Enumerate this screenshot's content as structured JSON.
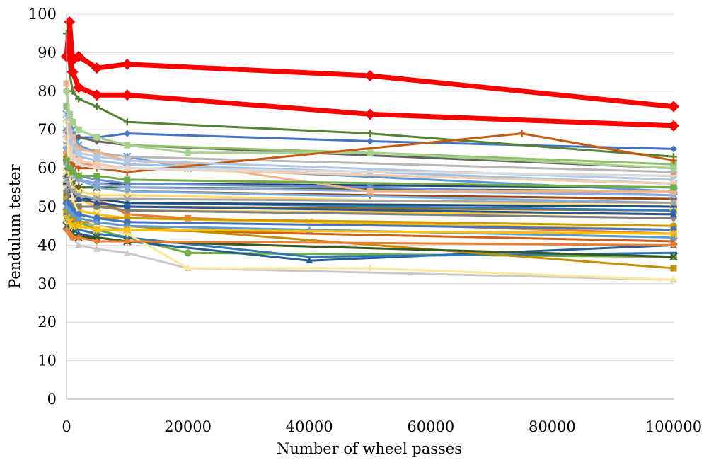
{
  "chart_data": {
    "type": "line",
    "title": "",
    "xlabel": "Number of wheel passes",
    "ylabel": "Pendulum tester",
    "xlim": [
      0,
      100000
    ],
    "ylim": [
      0,
      100
    ],
    "x_ticks": [
      0,
      20000,
      40000,
      60000,
      80000,
      100000
    ],
    "x_tick_labels": [
      "0",
      "20000",
      "40000",
      "60000",
      "80000",
      "100000"
    ],
    "y_ticks": [
      0,
      10,
      20,
      30,
      40,
      50,
      60,
      70,
      80,
      90,
      100
    ],
    "y_tick_labels": [
      "0",
      "10",
      "20",
      "30",
      "40",
      "50",
      "60",
      "70",
      "80",
      "90",
      "100"
    ],
    "grid": "horizontal",
    "legend": "none",
    "series": [
      {
        "color": "#4472C4",
        "marker": "diamond",
        "x": [
          0,
          500,
          1000,
          2000,
          5000,
          10000,
          50000,
          100000
        ],
        "y": [
          68,
          70,
          69,
          68,
          68,
          69,
          67,
          65
        ]
      },
      {
        "color": "#ED7D31",
        "marker": "square",
        "x": [
          0,
          500,
          1000,
          2000,
          5000,
          10000,
          20000,
          100000
        ],
        "y": [
          58,
          55,
          53,
          53,
          52,
          48,
          47,
          43
        ]
      },
      {
        "color": "#A5A5A5",
        "marker": "triangle",
        "x": [
          0,
          500,
          1000,
          2000,
          5000,
          10000,
          100000
        ],
        "y": [
          56,
          50,
          48,
          46,
          45,
          44,
          43
        ]
      },
      {
        "color": "#FFC000",
        "marker": "cross",
        "x": [
          0,
          500,
          1000,
          2000,
          5000,
          10000,
          40000,
          100000
        ],
        "y": [
          55,
          52,
          50,
          49,
          48,
          47,
          46,
          44
        ]
      },
      {
        "color": "#5B9BD5",
        "marker": "star",
        "x": [
          0,
          500,
          1000,
          2000,
          5000,
          10000,
          20000,
          100000
        ],
        "y": [
          74,
          72,
          70,
          66,
          64,
          63,
          60,
          54
        ]
      },
      {
        "color": "#70AD47",
        "marker": "circle",
        "x": [
          0,
          500,
          1000,
          2000,
          5000,
          10000,
          20000,
          100000
        ],
        "y": [
          58,
          55,
          50,
          46,
          44,
          42,
          38,
          37
        ]
      },
      {
        "color": "#264478",
        "marker": "dash",
        "x": [
          0,
          500,
          1000,
          2000,
          5000,
          10000,
          100000
        ],
        "y": [
          62,
          60,
          58,
          57,
          56,
          56,
          55
        ]
      },
      {
        "color": "#9E480E",
        "marker": "plus",
        "x": [
          0,
          500,
          1000,
          2000,
          5000,
          10000,
          50000,
          100000
        ],
        "y": [
          60,
          58,
          56,
          55,
          55,
          54,
          53,
          52
        ]
      },
      {
        "color": "#636363",
        "marker": "diamond",
        "x": [
          0,
          500,
          1000,
          2000,
          5000,
          10000,
          100000
        ],
        "y": [
          70,
          69,
          68,
          68,
          67,
          66,
          60
        ]
      },
      {
        "color": "#997300",
        "marker": "square",
        "x": [
          0,
          500,
          1000,
          2000,
          5000,
          10000,
          100000
        ],
        "y": [
          53,
          52,
          51,
          50,
          50,
          50,
          49
        ]
      },
      {
        "color": "#255E91",
        "marker": "triangle",
        "x": [
          0,
          500,
          1000,
          2000,
          5000,
          10000,
          40000,
          100000
        ],
        "y": [
          47,
          45,
          44,
          43,
          42,
          41,
          36,
          40
        ]
      },
      {
        "color": "#43682B",
        "marker": "cross",
        "x": [
          0,
          500,
          1000,
          2000,
          5000,
          10000,
          100000
        ],
        "y": [
          57,
          56,
          56,
          55,
          55,
          55,
          54
        ]
      },
      {
        "color": "#698ED0",
        "marker": "star",
        "x": [
          0,
          500,
          1000,
          2000,
          5000,
          10000,
          50000,
          100000
        ],
        "y": [
          66,
          63,
          60,
          58,
          57,
          56,
          55,
          53
        ]
      },
      {
        "color": "#F1975A",
        "marker": "circle",
        "x": [
          0,
          500,
          1000,
          2000,
          5000,
          10000,
          100000
        ],
        "y": [
          64,
          63,
          62,
          61,
          61,
          60,
          58
        ]
      },
      {
        "color": "#B7B7B7",
        "marker": "dash",
        "x": [
          0,
          500,
          1000,
          2000,
          5000,
          10000,
          100000
        ],
        "y": [
          72,
          68,
          66,
          65,
          64,
          63,
          59
        ]
      },
      {
        "color": "#FFCD33",
        "marker": "plus",
        "x": [
          0,
          500,
          1000,
          2000,
          5000,
          10000,
          100000
        ],
        "y": [
          60,
          56,
          53,
          52,
          50,
          49,
          48
        ]
      },
      {
        "color": "#7CAFDD",
        "marker": "diamond",
        "x": [
          0,
          500,
          1000,
          2000,
          5000,
          10000,
          100000
        ],
        "y": [
          65,
          62,
          59,
          57,
          55,
          54,
          51
        ]
      },
      {
        "color": "#8CC168",
        "marker": "square",
        "x": [
          0,
          500,
          1000,
          2000,
          5000,
          10000,
          50000,
          100000
        ],
        "y": [
          76,
          74,
          72,
          70,
          68,
          66,
          64,
          61
        ]
      },
      {
        "color": "#327DC2",
        "marker": "triangle",
        "x": [
          0,
          500,
          1000,
          2000,
          5000,
          10000,
          100000
        ],
        "y": [
          60,
          57,
          55,
          53,
          52,
          51,
          49
        ]
      },
      {
        "color": "#D26012",
        "marker": "cross",
        "x": [
          0,
          500,
          1000,
          2000,
          5000,
          10000,
          100000
        ],
        "y": [
          50,
          48,
          46,
          45,
          44,
          44,
          41
        ]
      },
      {
        "color": "#848484",
        "marker": "star",
        "x": [
          0,
          500,
          1000,
          2000,
          5000,
          10000,
          100000
        ],
        "y": [
          69,
          66,
          64,
          62,
          61,
          60,
          56
        ]
      },
      {
        "color": "#CC9A00",
        "marker": "circle",
        "x": [
          0,
          500,
          1000,
          2000,
          5000,
          10000,
          100000
        ],
        "y": [
          52,
          50,
          49,
          48,
          47,
          47,
          45
        ]
      },
      {
        "color": "#2E75B6",
        "marker": "dash",
        "x": [
          0,
          500,
          1000,
          2000,
          5000,
          10000,
          40000,
          100000
        ],
        "y": [
          48,
          46,
          45,
          44,
          43,
          42,
          37,
          38
        ]
      },
      {
        "color": "#548235",
        "marker": "plus",
        "x": [
          0,
          500,
          1000,
          2000,
          5000,
          10000,
          50000,
          100000
        ],
        "y": [
          95,
          85,
          80,
          78,
          76,
          72,
          69,
          63
        ]
      },
      {
        "color": "#8FAADC",
        "marker": "diamond",
        "x": [
          0,
          500,
          1000,
          2000,
          5000,
          10000,
          100000
        ],
        "y": [
          61,
          59,
          58,
          57,
          56,
          55,
          53
        ]
      },
      {
        "color": "#F4B183",
        "marker": "square",
        "x": [
          0,
          500,
          1000,
          2000,
          5000,
          10000,
          20000,
          50000,
          100000
        ],
        "y": [
          82,
          72,
          68,
          65,
          64,
          62,
          61,
          54,
          54
        ]
      },
      {
        "color": "#C9C9C9",
        "marker": "triangle",
        "x": [
          0,
          500,
          1000,
          2000,
          5000,
          10000,
          20000,
          100000
        ],
        "y": [
          55,
          46,
          42,
          40,
          39,
          38,
          34,
          31
        ]
      },
      {
        "color": "#FFD966",
        "marker": "cross",
        "x": [
          0,
          500,
          1000,
          2000,
          5000,
          10000,
          100000
        ],
        "y": [
          59,
          56,
          55,
          54,
          53,
          53,
          50
        ]
      },
      {
        "color": "#9DC3E6",
        "marker": "star",
        "x": [
          0,
          500,
          1000,
          2000,
          5000,
          10000,
          50000,
          100000
        ],
        "y": [
          70,
          67,
          65,
          63,
          62,
          61,
          59,
          56
        ]
      },
      {
        "color": "#A9D18E",
        "marker": "circle",
        "x": [
          0,
          500,
          1000,
          2000,
          5000,
          10000,
          20000,
          50000,
          100000
        ],
        "y": [
          80,
          74,
          72,
          70,
          68,
          66,
          64,
          64,
          60
        ]
      },
      {
        "color": "#1F4E79",
        "marker": "dash",
        "x": [
          0,
          500,
          1000,
          2000,
          5000,
          10000,
          100000
        ],
        "y": [
          56,
          54,
          53,
          52,
          52,
          51,
          50
        ]
      },
      {
        "color": "#C55A11",
        "marker": "plus",
        "x": [
          0,
          500,
          1000,
          2000,
          5000,
          10000,
          75000,
          100000
        ],
        "y": [
          63,
          62,
          61,
          60,
          60,
          59,
          69,
          62
        ]
      },
      {
        "color": "#7F7F7F",
        "marker": "diamond",
        "x": [
          0,
          500,
          1000,
          2000,
          5000,
          10000,
          100000
        ],
        "y": [
          54,
          52,
          51,
          50,
          50,
          49,
          47
        ]
      },
      {
        "color": "#BF9000",
        "marker": "square",
        "x": [
          0,
          500,
          1000,
          2000,
          5000,
          10000,
          100000
        ],
        "y": [
          49,
          48,
          47,
          46,
          46,
          45,
          34
        ]
      },
      {
        "color": "#2F5597",
        "marker": "triangle",
        "x": [
          0,
          500,
          1000,
          2000,
          5000,
          10000,
          100000
        ],
        "y": [
          58,
          55,
          53,
          52,
          51,
          50,
          48
        ]
      },
      {
        "color": "#385723",
        "marker": "cross",
        "x": [
          0,
          500,
          1000,
          2000,
          5000,
          10000,
          100000
        ],
        "y": [
          45,
          44,
          43,
          42,
          42,
          41,
          37
        ]
      },
      {
        "color": "#B4C7E7",
        "marker": "star",
        "x": [
          0,
          500,
          1000,
          2000,
          5000,
          10000,
          100000
        ],
        "y": [
          73,
          69,
          66,
          64,
          63,
          62,
          57
        ]
      },
      {
        "color": "#F8CBAD",
        "marker": "circle",
        "x": [
          0,
          500,
          1000,
          2000,
          5000,
          10000,
          100000
        ],
        "y": [
          68,
          65,
          63,
          62,
          61,
          60,
          56
        ]
      },
      {
        "color": "#DBDBDB",
        "marker": "dash",
        "x": [
          0,
          500,
          1000,
          2000,
          5000,
          10000,
          100000
        ],
        "y": [
          66,
          64,
          62,
          61,
          60,
          60,
          58
        ]
      },
      {
        "color": "#FFE699",
        "marker": "plus",
        "x": [
          0,
          500,
          1000,
          2000,
          5000,
          10000,
          20000,
          50000,
          100000
        ],
        "y": [
          72,
          58,
          52,
          48,
          45,
          43,
          34,
          34,
          31
        ]
      },
      {
        "color": "#4472C4",
        "marker": "circle",
        "x": [
          0,
          500,
          1000,
          2000,
          5000,
          10000,
          100000
        ],
        "y": [
          51,
          50,
          49,
          48,
          47,
          46,
          44
        ]
      },
      {
        "color": "#ED7D31",
        "marker": "diamond",
        "x": [
          0,
          500,
          1000,
          2000,
          5000,
          10000,
          100000
        ],
        "y": [
          44,
          43,
          42,
          42,
          41,
          41,
          40
        ]
      },
      {
        "color": "#70AD47",
        "marker": "square",
        "x": [
          0,
          500,
          1000,
          2000,
          5000,
          10000,
          100000
        ],
        "y": [
          62,
          60,
          59,
          58,
          58,
          57,
          55
        ]
      },
      {
        "color": "#5B9BD5",
        "marker": "triangle",
        "x": [
          0,
          500,
          1000,
          2000,
          5000,
          10000,
          40000,
          100000
        ],
        "y": [
          50,
          49,
          48,
          47,
          46,
          45,
          44,
          42
        ]
      },
      {
        "color": "#A5A5A5",
        "marker": "cross",
        "x": [
          0,
          500,
          1000,
          2000,
          5000,
          10000,
          100000
        ],
        "y": [
          57,
          55,
          54,
          53,
          52,
          52,
          51
        ]
      },
      {
        "color": "#FFC000",
        "marker": "star",
        "x": [
          0,
          500,
          1000,
          2000,
          5000,
          10000,
          100000
        ],
        "y": [
          47,
          46,
          45,
          45,
          44,
          44,
          43
        ]
      },
      {
        "color": "#FF0000",
        "marker": "diamond",
        "line_width": "thick",
        "x": [
          0,
          500,
          1000,
          2000,
          5000,
          10000,
          50000,
          100000
        ],
        "y": [
          89,
          98,
          88,
          89,
          86,
          87,
          84,
          76
        ]
      },
      {
        "color": "#FF0000",
        "marker": "diamond",
        "line_width": "thick",
        "x": [
          0,
          500,
          1000,
          2000,
          5000,
          10000,
          50000,
          100000
        ],
        "y": [
          89,
          89,
          85,
          81,
          79,
          79,
          74,
          71
        ]
      }
    ]
  }
}
